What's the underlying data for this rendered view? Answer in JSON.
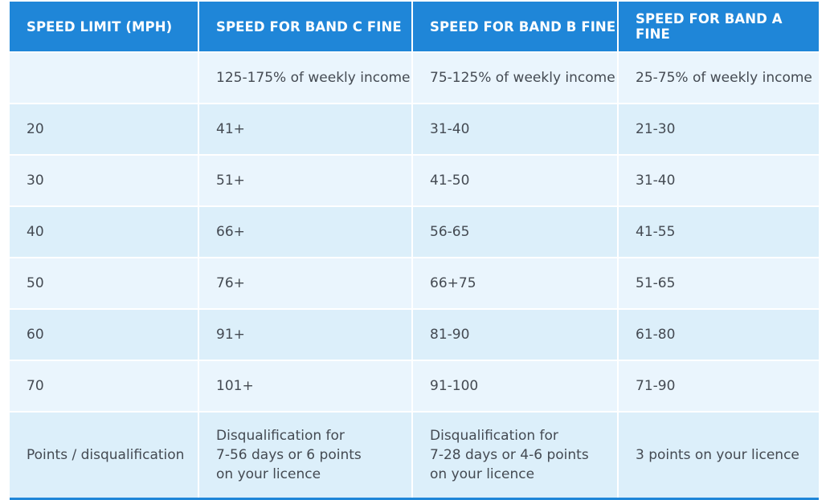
{
  "header": {
    "col1": "SPEED LIMIT (MPH)",
    "col2": "SPEED FOR BAND C FINE",
    "col3": "SPEED FOR BAND B FINE",
    "col4": "SPEED FOR BAND A FINE"
  },
  "rows": [
    {
      "c1": "",
      "c2": "125-175% of weekly income",
      "c3": "75-125% of weekly income",
      "c4": "25-75% of weekly income"
    },
    {
      "c1": "20",
      "c2": "41+",
      "c3": "31-40",
      "c4": "21-30"
    },
    {
      "c1": "30",
      "c2": "51+",
      "c3": "41-50",
      "c4": "31-40"
    },
    {
      "c1": "40",
      "c2": "66+",
      "c3": "56-65",
      "c4": "41-55"
    },
    {
      "c1": "50",
      "c2": "76+",
      "c3": "66+75",
      "c4": "51-65"
    },
    {
      "c1": "60",
      "c2": "91+",
      "c3": "81-90",
      "c4": "61-80"
    },
    {
      "c1": "70",
      "c2": "101+",
      "c3": "91-100",
      "c4": "71-90"
    },
    {
      "c1": "Points / disqualification",
      "c2": "Disqualification for\n7-56 days or 6 points\non your licence",
      "c3": "Disqualification for\n7-28 days or 4-6 points\non your licence",
      "c4": "3 points on your licence"
    }
  ],
  "colors": {
    "header_bg": "#1f86d8",
    "row_light": "#eaf5fd",
    "row_dark": "#dceffa",
    "text": "#444a52"
  }
}
